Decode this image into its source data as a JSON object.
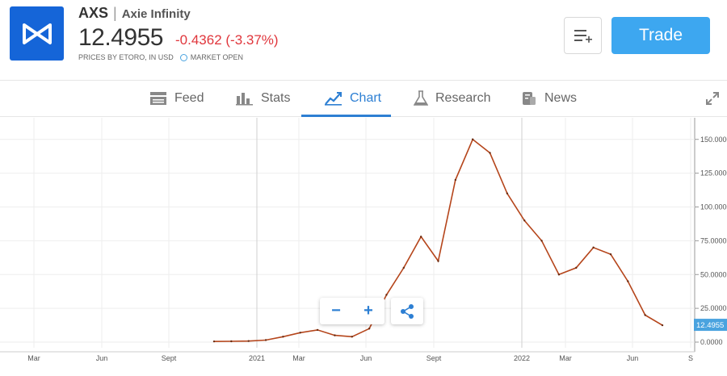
{
  "header": {
    "symbol": "AXS",
    "separator": "|",
    "name": "Axie Infinity",
    "price": "12.4955",
    "change": "-0.4362 (-3.37%)",
    "source_note": "PRICES BY ETORO, IN USD",
    "market_status": "MARKET OPEN",
    "trade_label": "Trade",
    "accent_color": "#3da7f0",
    "negative_color": "#e0363c"
  },
  "tabs": [
    {
      "label": "Feed",
      "icon": "feed-icon"
    },
    {
      "label": "Stats",
      "icon": "stats-icon"
    },
    {
      "label": "Chart",
      "icon": "chart-icon",
      "active": true
    },
    {
      "label": "Research",
      "icon": "flask-icon"
    },
    {
      "label": "News",
      "icon": "news-icon"
    }
  ],
  "chart_data": {
    "type": "line",
    "x_ticks": [
      "Mar",
      "Jun",
      "Sept",
      "2021",
      "Mar",
      "Jun",
      "Sept",
      "2022",
      "Mar",
      "Jun",
      "S"
    ],
    "y_ticks": [
      "0.0000",
      "25.0000",
      "50.0000",
      "75.0000",
      "100.0000",
      "125.0000",
      "150.0000"
    ],
    "ylim": [
      0,
      160
    ],
    "current_value_label": "12.4955",
    "grid": true,
    "x": [
      "2020-11",
      "2020-12",
      "2021-01",
      "2021-02",
      "2021-03",
      "2021-04",
      "2021-05",
      "2021-06",
      "2021-07",
      "2021-07b",
      "2021-08",
      "2021-08b",
      "2021-09",
      "2021-09b",
      "2021-10",
      "2021-11",
      "2021-11b",
      "2021-12",
      "2022-01",
      "2022-01b",
      "2022-02",
      "2022-03",
      "2022-04",
      "2022-04b",
      "2022-05",
      "2022-06",
      "2022-07"
    ],
    "series": [
      {
        "values": [
          0.5,
          0.6,
          0.8,
          1.5,
          4,
          7,
          9,
          5,
          4,
          10,
          35,
          55,
          78,
          60,
          120,
          150,
          140,
          110,
          90,
          75,
          50,
          55,
          70,
          65,
          45,
          20,
          12.5
        ]
      }
    ]
  }
}
